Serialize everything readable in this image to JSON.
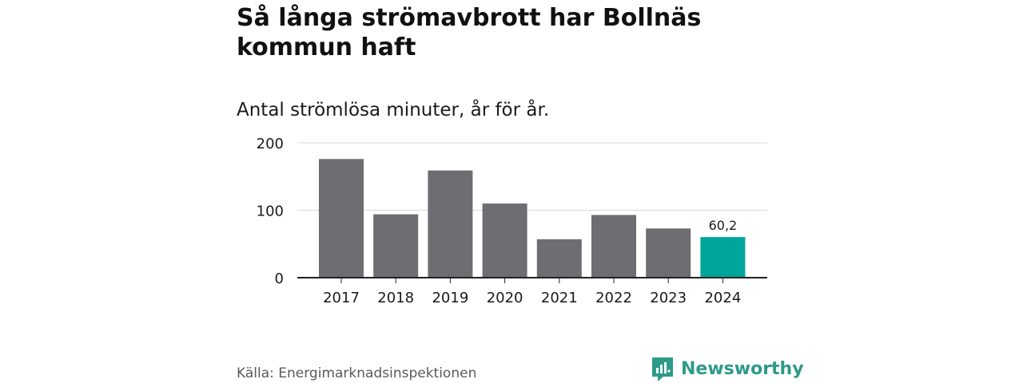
{
  "header": {
    "title": "Så långa strömavbrott har Bollnäs kommun haft",
    "subtitle": "Antal strömlösa minuter, år för år."
  },
  "footer": {
    "source": "Källa: Energimarknadsinspektionen",
    "brand": "Newsworthy",
    "brand_icon": "bar-chart-speech-bubble-icon"
  },
  "colors": {
    "bar": "#6e6d72",
    "highlight": "#00a69c",
    "grid": "#d9d9d9",
    "axis": "#222222",
    "brand": "#2e9a88"
  },
  "chart_data": {
    "type": "bar",
    "title": "Så långa strömavbrott har Bollnäs kommun haft",
    "subtitle": "Antal strömlösa minuter, år för år.",
    "categories": [
      "2017",
      "2018",
      "2019",
      "2020",
      "2021",
      "2022",
      "2023",
      "2024"
    ],
    "values": [
      176,
      94,
      159,
      110,
      57,
      93,
      73,
      60.2
    ],
    "highlight_index": 7,
    "data_labels": [
      {
        "index": 7,
        "text": "60,2"
      }
    ],
    "yticks": [
      0,
      100,
      200
    ],
    "ytick_labels": [
      "0",
      "100",
      "200"
    ],
    "ylim": [
      0,
      200
    ],
    "xlabel": "",
    "ylabel": "",
    "grid": true
  }
}
